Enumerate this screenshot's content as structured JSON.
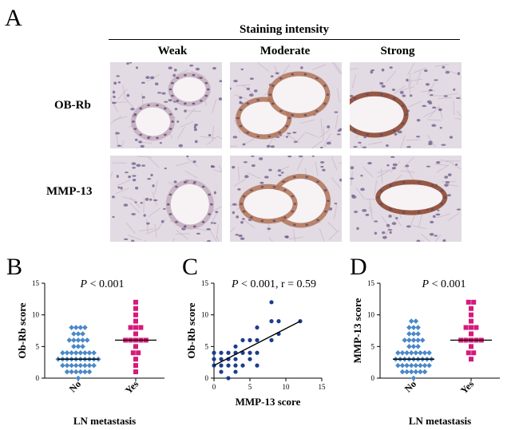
{
  "figure": {
    "panel_a": {
      "letter": "A",
      "header": "Staining intensity",
      "columns": [
        "Weak",
        "Moderate",
        "Strong"
      ],
      "rows": [
        "OB-Rb",
        "MMP-13"
      ]
    },
    "panel_b": {
      "letter": "B",
      "p_prefix": "P",
      "p_rest": " < 0.001"
    },
    "panel_c": {
      "letter": "C",
      "p_prefix": "P",
      "p_rest": " < 0.001, r = 0.59"
    },
    "panel_d": {
      "letter": "D",
      "p_prefix": "P",
      "p_rest": " < 0.001"
    },
    "colors": {
      "blue": "#4a88c8",
      "navy": "#1b3d8c",
      "magenta": "#d6197a",
      "tissue_bg": "#e2dbe3",
      "stain_weak": "#b79aaf",
      "stain_mod": "#b57a5e",
      "stain_strong": "#8f4a32"
    }
  },
  "chart_data": [
    {
      "type": "scatter",
      "id": "B",
      "title": "",
      "xlabel": "LN metastasis",
      "ylabel": "Ob-Rb score",
      "categories": [
        "No",
        "Yes"
      ],
      "ylim": [
        0,
        15
      ],
      "yticks": [
        0,
        5,
        10,
        15
      ],
      "series": [
        {
          "category": "No",
          "marker": "diamond",
          "color": "#4a88c8",
          "median": 3,
          "values": [
            0,
            1,
            1,
            1,
            1,
            1,
            1,
            2,
            2,
            2,
            2,
            2,
            2,
            2,
            2,
            3,
            3,
            3,
            3,
            3,
            3,
            3,
            3,
            3,
            3,
            4,
            4,
            4,
            4,
            4,
            4,
            4,
            4,
            5,
            5,
            5,
            6,
            6,
            6,
            6,
            6,
            7,
            7,
            7,
            8,
            8,
            8,
            8
          ]
        },
        {
          "category": "Yes",
          "marker": "square",
          "color": "#d6197a",
          "median": 6,
          "values": [
            1,
            2,
            3,
            4,
            4,
            5,
            6,
            6,
            6,
            6,
            6,
            7,
            8,
            8,
            8,
            9,
            10,
            11,
            12
          ]
        }
      ]
    },
    {
      "type": "scatter",
      "id": "C",
      "title": "",
      "xlabel": "MMP-13 score",
      "ylabel": "Ob-Rb score",
      "xlim": [
        0,
        15
      ],
      "ylim": [
        0,
        15
      ],
      "xticks": [
        0,
        5,
        10,
        15
      ],
      "yticks": [
        0,
        5,
        10,
        15
      ],
      "fit_line": {
        "x": [
          0,
          12
        ],
        "y": [
          2,
          9
        ]
      },
      "points": [
        [
          0,
          2
        ],
        [
          0,
          3
        ],
        [
          0,
          4
        ],
        [
          1,
          1
        ],
        [
          1,
          2
        ],
        [
          1,
          3
        ],
        [
          1,
          4
        ],
        [
          2,
          0
        ],
        [
          2,
          2
        ],
        [
          2,
          3
        ],
        [
          2,
          4
        ],
        [
          3,
          1
        ],
        [
          3,
          2
        ],
        [
          3,
          3
        ],
        [
          3,
          4
        ],
        [
          3,
          5
        ],
        [
          4,
          2
        ],
        [
          4,
          4
        ],
        [
          4,
          6
        ],
        [
          5,
          3
        ],
        [
          5,
          4
        ],
        [
          5,
          6
        ],
        [
          6,
          2
        ],
        [
          6,
          4
        ],
        [
          6,
          6
        ],
        [
          6,
          8
        ],
        [
          8,
          6
        ],
        [
          8,
          9
        ],
        [
          8,
          12
        ],
        [
          9,
          7
        ],
        [
          9,
          9
        ],
        [
          12,
          9
        ]
      ]
    },
    {
      "type": "scatter",
      "id": "D",
      "title": "",
      "xlabel": "LN metastasis",
      "ylabel": "MMP-13 score",
      "categories": [
        "No",
        "Yes"
      ],
      "ylim": [
        0,
        15
      ],
      "yticks": [
        0,
        5,
        10,
        15
      ],
      "series": [
        {
          "category": "No",
          "marker": "diamond",
          "color": "#4a88c8",
          "median": 3,
          "values": [
            0,
            1,
            1,
            1,
            1,
            1,
            1,
            2,
            2,
            2,
            2,
            2,
            2,
            2,
            2,
            3,
            3,
            3,
            3,
            3,
            3,
            3,
            3,
            3,
            4,
            4,
            4,
            4,
            4,
            4,
            4,
            4,
            5,
            5,
            5,
            6,
            6,
            6,
            6,
            6,
            7,
            7,
            7,
            8,
            8,
            8,
            9,
            9
          ]
        },
        {
          "category": "Yes",
          "marker": "square",
          "color": "#d6197a",
          "median": 6,
          "values": [
            3,
            4,
            4,
            5,
            6,
            6,
            6,
            6,
            6,
            7,
            8,
            8,
            8,
            9,
            10,
            11,
            12,
            12
          ]
        }
      ]
    }
  ]
}
